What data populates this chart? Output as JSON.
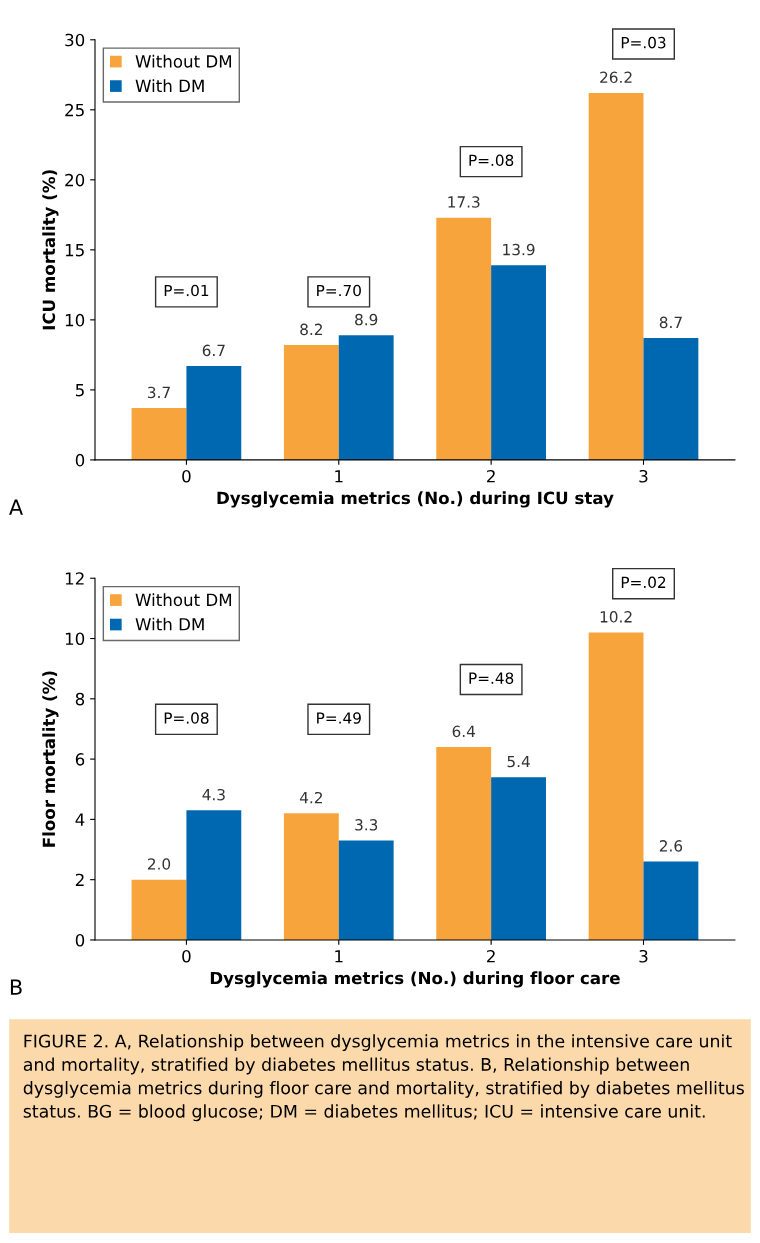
{
  "chart_data": [
    {
      "type": "bar",
      "xlabel": "Dysglycemia metrics (No.) during ICU stay",
      "ylabel": "ICU mortality (%)",
      "categories": [
        "0",
        "1",
        "2",
        "3"
      ],
      "series": [
        {
          "name": "Without DM",
          "color": "#f7a43c",
          "values": [
            3.7,
            8.2,
            17.3,
            26.2
          ],
          "value_labels": [
            "3.7",
            "8.2",
            "17.3",
            "26.2"
          ]
        },
        {
          "name": "With DM",
          "color": "#0067b1",
          "values": [
            6.7,
            8.9,
            13.9,
            8.7
          ],
          "value_labels": [
            "6.7",
            "8.9",
            "13.9",
            "8.7"
          ]
        }
      ],
      "ylim": [
        0,
        30
      ],
      "yticks": [
        0,
        5,
        10,
        15,
        20,
        25,
        30
      ],
      "legend": "top left",
      "grid": false,
      "annotations": [
        "P=.01",
        "P=.70",
        "P=.08",
        "P=.03",
        "A"
      ]
    },
    {
      "type": "bar",
      "xlabel": "Dysglycemia metrics (No.) during floor care",
      "ylabel": "Floor mortality (%)",
      "categories": [
        "0",
        "1",
        "2",
        "3"
      ],
      "series": [
        {
          "name": "Without DM",
          "color": "#f7a43c",
          "values": [
            2.0,
            4.2,
            6.4,
            10.2
          ],
          "value_labels": [
            "2.0",
            "4.2",
            "6.4",
            "10.2"
          ]
        },
        {
          "name": "With DM",
          "color": "#0067b1",
          "values": [
            4.3,
            3.3,
            5.4,
            2.6
          ],
          "value_labels": [
            "4.3",
            "3.3",
            "5.4",
            "2.6"
          ]
        }
      ],
      "ylim": [
        0,
        12
      ],
      "yticks": [
        0,
        2,
        4,
        6,
        8,
        10,
        12
      ],
      "legend": "top left",
      "grid": false,
      "annotations": [
        "P=.08",
        "P=.49",
        "P=.48",
        "P=.02",
        "B",
        "FIGURE 2. A, Relationship between dysglycemia metrics in the intensive care unit and mortality, stratified by diabetes mellitus status. B, Relationship between dysglycemia metrics during floor care and mortality, stratified by diabetes mellitus status. BG = blood glucose; DM = diabetes mellitus; ICU = intensive care unit."
      ]
    }
  ]
}
